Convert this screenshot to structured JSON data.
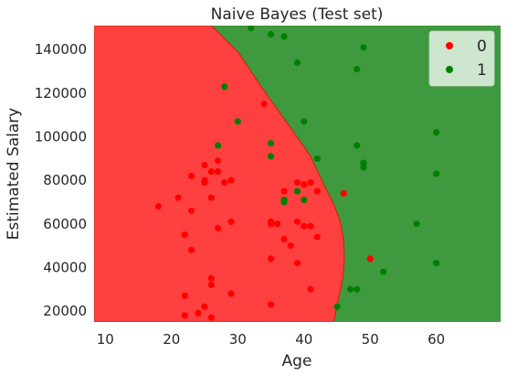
{
  "chart_data": {
    "type": "scatter",
    "title": "Naive Bayes (Test set)",
    "xlabel": "Age",
    "ylabel": "Estimated Salary",
    "xlim": [
      8.3,
      69.7
    ],
    "ylim": [
      15000,
      151000
    ],
    "x_ticks": [
      10,
      20,
      30,
      40,
      50,
      60
    ],
    "y_ticks": [
      20000,
      40000,
      60000,
      80000,
      100000,
      120000,
      140000
    ],
    "x_tick_labels": [
      "10",
      "20",
      "30",
      "40",
      "50",
      "60"
    ],
    "y_tick_labels": [
      "20000",
      "40000",
      "60000",
      "80000",
      "100000",
      "120000",
      "140000"
    ],
    "grid": false,
    "legend_position": "top-right",
    "regions": [
      {
        "label": "0",
        "color": "#ff4040"
      },
      {
        "label": "1",
        "color": "#3f993f"
      }
    ],
    "decision_boundary": [
      [
        26.0,
        151000
      ],
      [
        30.0,
        139000
      ],
      [
        34.0,
        121000
      ],
      [
        38.0,
        104000
      ],
      [
        41.0,
        91000
      ],
      [
        43.0,
        78000
      ],
      [
        44.5,
        69000
      ],
      [
        45.5,
        61000
      ],
      [
        46.0,
        52000
      ],
      [
        46.1,
        44000
      ],
      [
        45.9,
        36000
      ],
      [
        45.4,
        28000
      ],
      [
        44.8,
        20000
      ],
      [
        44.5,
        15000
      ]
    ],
    "series": [
      {
        "name": "0",
        "color": "#ff0000",
        "points": [
          [
            18,
            68000
          ],
          [
            21,
            72000
          ],
          [
            22,
            55000
          ],
          [
            22,
            27000
          ],
          [
            22,
            18000
          ],
          [
            23,
            82000
          ],
          [
            23,
            66000
          ],
          [
            23,
            48000
          ],
          [
            24,
            19000
          ],
          [
            25,
            87000
          ],
          [
            25,
            80000
          ],
          [
            25,
            79000
          ],
          [
            25,
            22000
          ],
          [
            26,
            84000
          ],
          [
            26,
            72000
          ],
          [
            26,
            35000
          ],
          [
            26,
            32000
          ],
          [
            26,
            17000
          ],
          [
            27,
            89000
          ],
          [
            27,
            84000
          ],
          [
            27,
            58000
          ],
          [
            28,
            79000
          ],
          [
            29,
            80000
          ],
          [
            29,
            61000
          ],
          [
            29,
            28000
          ],
          [
            34,
            115000
          ],
          [
            35,
            61000
          ],
          [
            35,
            60000
          ],
          [
            35,
            44000
          ],
          [
            35,
            23000
          ],
          [
            36,
            60000
          ],
          [
            37,
            75000
          ],
          [
            37,
            53000
          ],
          [
            38,
            50000
          ],
          [
            39,
            79000
          ],
          [
            39,
            61000
          ],
          [
            39,
            42000
          ],
          [
            40,
            78000
          ],
          [
            40,
            59000
          ],
          [
            41,
            79000
          ],
          [
            41,
            59000
          ],
          [
            41,
            30000
          ],
          [
            42,
            75000
          ],
          [
            42,
            54000
          ],
          [
            46,
            74000
          ],
          [
            50,
            44000
          ]
        ]
      },
      {
        "name": "1",
        "color": "#008000",
        "points": [
          [
            32,
            150000
          ],
          [
            35,
            147000
          ],
          [
            37,
            146000
          ],
          [
            28,
            123000
          ],
          [
            30,
            107000
          ],
          [
            27,
            96000
          ],
          [
            35,
            97000
          ],
          [
            35,
            91000
          ],
          [
            37,
            71000
          ],
          [
            37,
            70000
          ],
          [
            39,
            134000
          ],
          [
            39,
            75000
          ],
          [
            40,
            107000
          ],
          [
            40,
            71000
          ],
          [
            42,
            90000
          ],
          [
            45,
            22000
          ],
          [
            47,
            30000
          ],
          [
            48,
            131000
          ],
          [
            48,
            96000
          ],
          [
            48,
            30000
          ],
          [
            49,
            141000
          ],
          [
            49,
            88000
          ],
          [
            49,
            86000
          ],
          [
            52,
            38000
          ],
          [
            57,
            60000
          ],
          [
            60,
            102000
          ],
          [
            60,
            83000
          ],
          [
            60,
            42000
          ]
        ]
      }
    ]
  }
}
